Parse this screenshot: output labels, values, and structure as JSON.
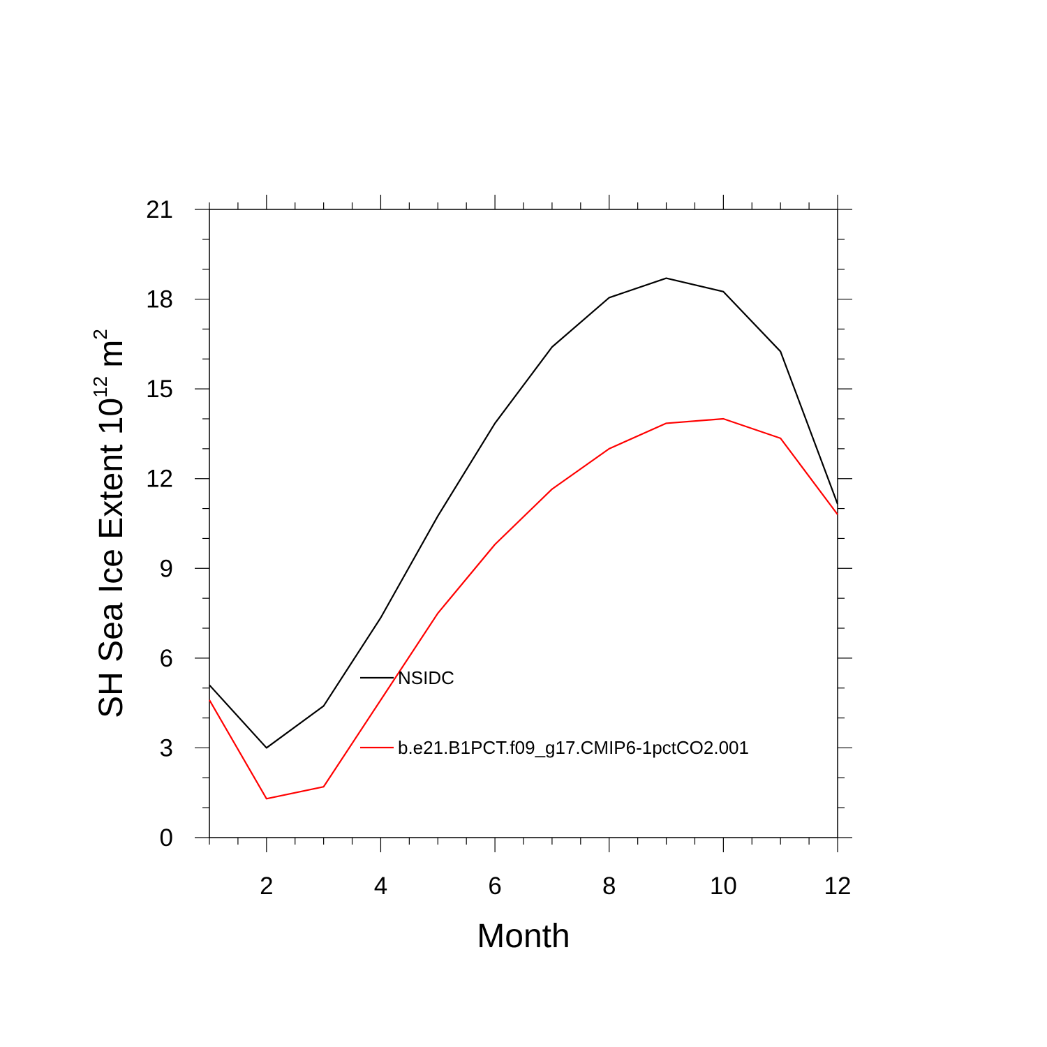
{
  "chart_data": {
    "type": "line",
    "xlabel": "Month",
    "ylabel": "SH Sea Ice Extent 10",
    "ylabel_exponent": "12",
    "ylabel_unit": "m",
    "ylabel_unit_exponent": "2",
    "xlim": [
      1,
      12
    ],
    "ylim": [
      0,
      21
    ],
    "x_major_ticks": [
      2,
      4,
      6,
      8,
      10,
      12
    ],
    "x_minor_step": 0.5,
    "y_major_ticks": [
      0,
      3,
      6,
      9,
      12,
      15,
      18,
      21
    ],
    "y_minor_step": 1,
    "grid": false,
    "legend_position": "inside, lower-middle",
    "x": [
      1,
      2,
      3,
      4,
      5,
      6,
      7,
      8,
      9,
      10,
      11,
      12
    ],
    "series": [
      {
        "name": "NSIDC",
        "color": "#000000",
        "values": [
          5.1,
          3.0,
          4.4,
          7.35,
          10.75,
          13.85,
          16.4,
          18.05,
          18.7,
          18.25,
          16.25,
          11.15
        ]
      },
      {
        "name": "b.e21.B1PCT.f09_g17.CMIP6-1pctCO2.001",
        "color": "#ff0000",
        "values": [
          4.6,
          1.3,
          1.7,
          4.6,
          7.5,
          9.8,
          11.65,
          13.0,
          13.85,
          14.0,
          13.35,
          10.8
        ]
      }
    ]
  }
}
